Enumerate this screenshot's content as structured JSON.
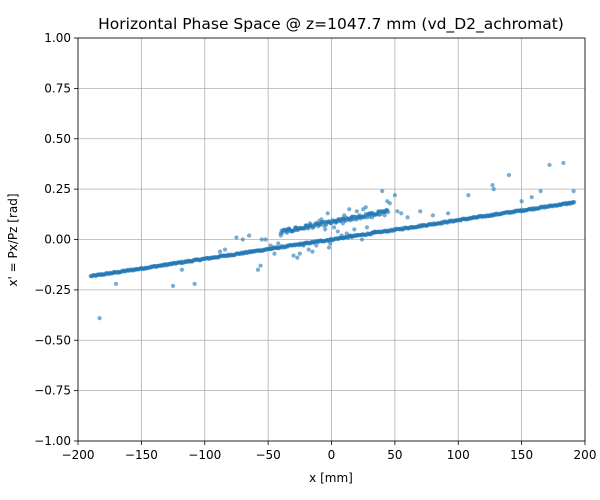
{
  "chart_data": {
    "type": "scatter",
    "title": "Horizontal Phase Space @ z=1047.7 mm (vd_D2_achromat)",
    "xlabel": "x [mm]",
    "ylabel": "x' = Px/Pz [rad]",
    "xlim": [
      -200,
      200
    ],
    "ylim": [
      -1.0,
      1.0
    ],
    "grid": true,
    "legend": "none",
    "x_ticks": [
      -200,
      -150,
      -100,
      -50,
      0,
      50,
      100,
      150,
      200
    ],
    "x_tick_labels": [
      "−200",
      "−150",
      "−100",
      "−50",
      "0",
      "50",
      "100",
      "150",
      "200"
    ],
    "y_ticks": [
      -1.0,
      -0.75,
      -0.5,
      -0.25,
      0.0,
      0.25,
      0.5,
      0.75,
      1.0
    ],
    "y_tick_labels": [
      "−1.00",
      "−0.75",
      "−0.50",
      "−0.25",
      "0.00",
      "0.25",
      "0.50",
      "0.75",
      "1.00"
    ],
    "marker_color": "#1f77b4",
    "marker_alpha": 0.6,
    "main_band": {
      "x_range": [
        -190,
        192
      ],
      "slope": 0.00096,
      "intercept": 0.0,
      "spread": 0.004
    },
    "secondary_band": {
      "x_range": [
        -40,
        45
      ],
      "slope": 0.0012,
      "intercept": 0.085,
      "spread": 0.01
    },
    "series": [
      {
        "values": [
          [
            -183,
            -0.39
          ],
          [
            -170,
            -0.22
          ],
          [
            -125,
            -0.23
          ],
          [
            -108,
            -0.22
          ],
          [
            -118,
            -0.15
          ],
          [
            -75,
            0.01
          ],
          [
            -65,
            0.02
          ],
          [
            -58,
            -0.15
          ],
          [
            -56,
            -0.13
          ],
          [
            -55,
            0.0
          ],
          [
            -52,
            0.0
          ],
          [
            -48,
            -0.03
          ],
          [
            -45,
            -0.07
          ],
          [
            -42,
            -0.02
          ],
          [
            -40,
            0.02
          ],
          [
            -30,
            -0.08
          ],
          [
            -27,
            -0.09
          ],
          [
            -25,
            -0.07
          ],
          [
            -22,
            -0.03
          ],
          [
            -18,
            -0.05
          ],
          [
            -15,
            -0.06
          ],
          [
            -12,
            -0.03
          ],
          [
            -10,
            0.09
          ],
          [
            -8,
            0.1
          ],
          [
            -5,
            0.05
          ],
          [
            -3,
            0.13
          ],
          [
            -1,
            -0.02
          ],
          [
            2,
            0.06
          ],
          [
            5,
            0.04
          ],
          [
            8,
            0.02
          ],
          [
            10,
            0.12
          ],
          [
            12,
            0.03
          ],
          [
            14,
            0.15
          ],
          [
            16,
            0.1
          ],
          [
            18,
            0.05
          ],
          [
            20,
            0.14
          ],
          [
            22,
            0.12
          ],
          [
            25,
            0.15
          ],
          [
            27,
            0.16
          ],
          [
            30,
            0.13
          ],
          [
            32,
            0.11
          ],
          [
            34,
            0.04
          ],
          [
            37,
            0.14
          ],
          [
            40,
            0.24
          ],
          [
            42,
            0.12
          ],
          [
            44,
            0.19
          ],
          [
            46,
            0.18
          ],
          [
            50,
            0.22
          ],
          [
            52,
            0.14
          ],
          [
            55,
            0.13
          ],
          [
            60,
            0.11
          ],
          [
            70,
            0.14
          ],
          [
            80,
            0.12
          ],
          [
            92,
            0.13
          ],
          [
            108,
            0.22
          ],
          [
            115,
            0.11
          ],
          [
            127,
            0.27
          ],
          [
            128,
            0.25
          ],
          [
            140,
            0.32
          ],
          [
            150,
            0.19
          ],
          [
            158,
            0.21
          ],
          [
            165,
            0.24
          ],
          [
            172,
            0.37
          ],
          [
            183,
            0.38
          ],
          [
            191,
            0.24
          ],
          [
            -88,
            -0.06
          ],
          [
            -84,
            -0.05
          ],
          [
            -70,
            0.0
          ],
          [
            -20,
            0.07
          ],
          [
            -17,
            0.08
          ],
          [
            3,
            0.09
          ],
          [
            6,
            0.1
          ],
          [
            9,
            0.08
          ],
          [
            24,
            0.0
          ],
          [
            28,
            0.06
          ],
          [
            -35,
            0.04
          ],
          [
            -33,
            0.05
          ],
          [
            -28,
            0.06
          ],
          [
            -2,
            -0.04
          ],
          [
            15,
            0.02
          ]
        ]
      }
    ]
  }
}
